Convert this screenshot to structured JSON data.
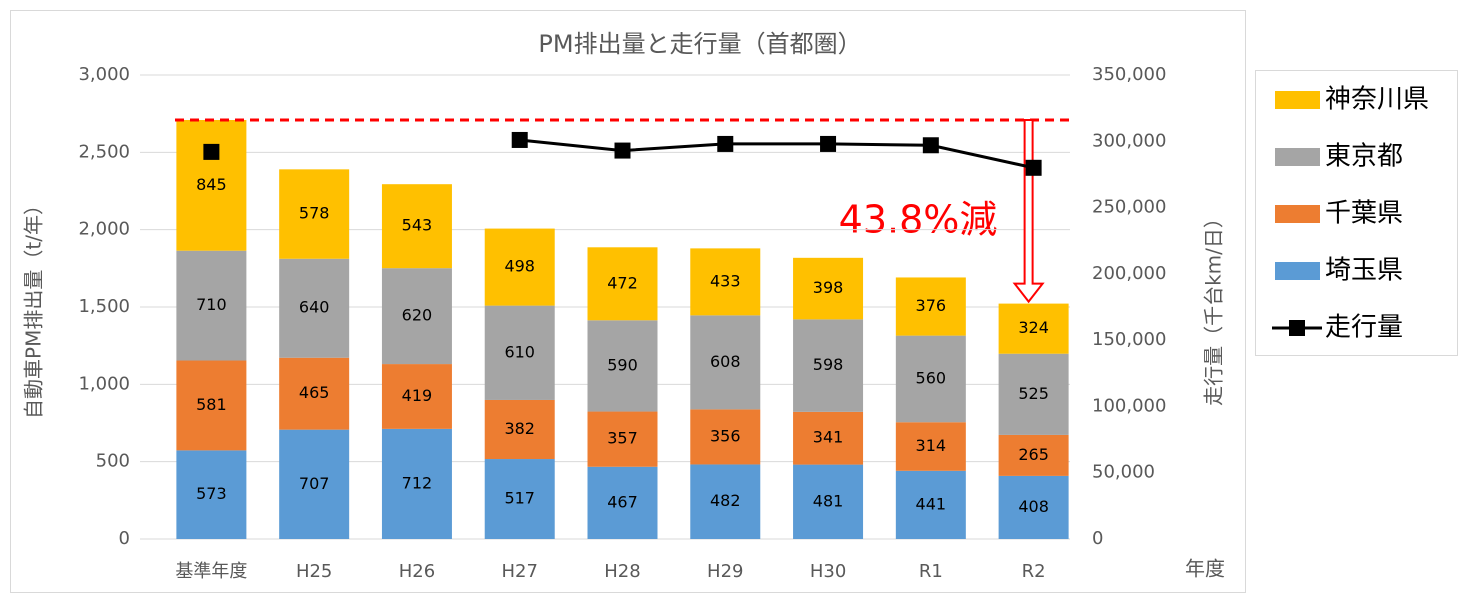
{
  "chart_data": {
    "type": "bar",
    "title": "PM排出量と走行量（首都圏）",
    "y_label": "自動車PM排出量（t/年）",
    "y2_label": "走行量（千台km/日）",
    "x_label": "年度",
    "annotation": "43.8%減",
    "categories": [
      "基準年度",
      "H25",
      "H26",
      "H27",
      "H28",
      "H29",
      "H30",
      "R1",
      "R2"
    ],
    "series": [
      {
        "name": "埼玉県",
        "color": "#5b9bd5",
        "values": [
          573,
          707,
          712,
          517,
          467,
          482,
          481,
          441,
          408
        ]
      },
      {
        "name": "千葉県",
        "color": "#ed7d31",
        "values": [
          581,
          465,
          419,
          382,
          357,
          356,
          341,
          314,
          265
        ]
      },
      {
        "name": "東京都",
        "color": "#a5a5a5",
        "values": [
          710,
          640,
          620,
          610,
          590,
          608,
          598,
          560,
          525
        ]
      },
      {
        "name": "神奈川県",
        "color": "#ffc000",
        "values": [
          845,
          578,
          543,
          498,
          472,
          433,
          398,
          376,
          324
        ]
      },
      {
        "name": "走行量",
        "color": "#000000",
        "axis": "y2",
        "type": "line",
        "values": [
          292000,
          null,
          null,
          301000,
          293000,
          298000,
          298000,
          297000,
          280000
        ]
      }
    ],
    "ylim": [
      0,
      3000
    ],
    "yticks": [
      0,
      500,
      {
        "value": 1000,
        "label": "1,000"
      },
      {
        "value": 1500,
        "label": "1,500"
      },
      {
        "value": 2000,
        "label": "2,000"
      },
      {
        "value": 2500,
        "label": "2,500"
      },
      {
        "value": 3000,
        "label": "3,000"
      }
    ],
    "y2lim": [
      0,
      350000
    ],
    "y2ticks": [
      0,
      {
        "value": 50000,
        "label": "50,000"
      },
      {
        "value": 100000,
        "label": "100,000"
      },
      {
        "value": 150000,
        "label": "150,000"
      },
      {
        "value": 200000,
        "label": "200,000"
      },
      {
        "value": 250000,
        "label": "250,000"
      },
      {
        "value": 300000,
        "label": "300,000"
      },
      {
        "value": 350000,
        "label": "350,000"
      }
    ],
    "grid": true
  }
}
